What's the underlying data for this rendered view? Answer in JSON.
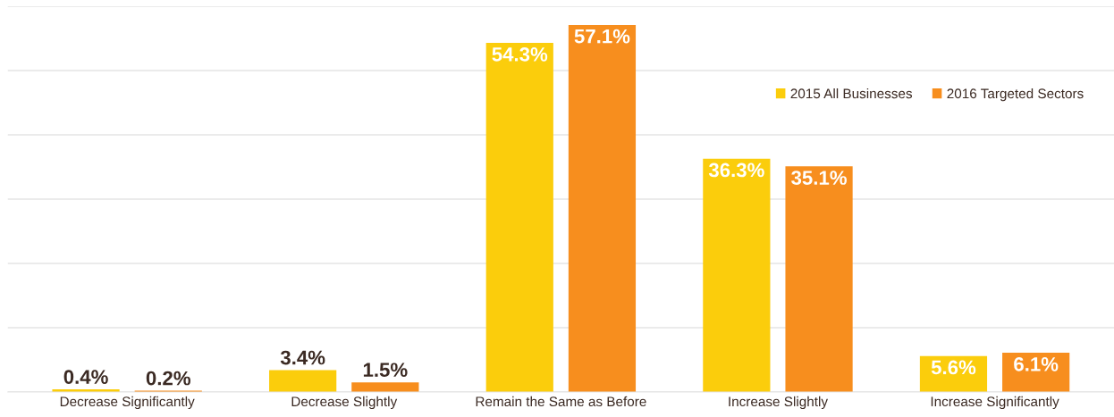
{
  "chart_data": {
    "type": "bar",
    "categories": [
      "Decrease Significantly",
      "Decrease Slightly",
      "Remain the Same as Before",
      "Increase Slightly",
      "Increase Significantly"
    ],
    "series": [
      {
        "name": "2015 All Businesses",
        "color": "#fbcd0c",
        "values": [
          0.4,
          3.4,
          54.3,
          36.3,
          5.6
        ],
        "value_labels": [
          "0.4%",
          "3.4%",
          "54.3%",
          "36.3%",
          "5.6%"
        ]
      },
      {
        "name": "2016 Targeted Sectors",
        "color": "#f78e1e",
        "values": [
          0.2,
          1.5,
          57.1,
          35.1,
          6.1
        ],
        "value_labels": [
          "0.2%",
          "1.5%",
          "57.1%",
          "35.1%",
          "6.1%"
        ]
      }
    ],
    "ylim": [
      0,
      60
    ],
    "yticks": [
      {
        "value": 0,
        "label": null
      },
      {
        "value": 10,
        "label": null
      },
      {
        "value": 20,
        "label": null
      },
      {
        "value": 30,
        "label": null
      },
      {
        "value": 40,
        "label": null
      },
      {
        "value": 50,
        "label": null
      },
      {
        "value": 60,
        "label": null
      }
    ],
    "tick_labels": "x",
    "grid": "y",
    "legend": "top right"
  }
}
